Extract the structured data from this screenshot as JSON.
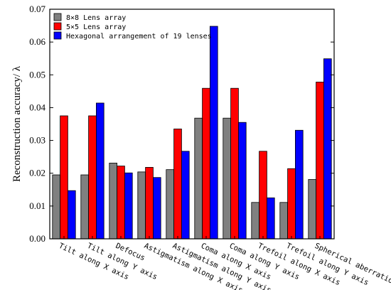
{
  "chart_data": {
    "type": "bar",
    "title": "",
    "xlabel": "",
    "ylabel": "Reconstruction accuracy/ λ",
    "ylim": [
      0,
      0.07
    ],
    "yticks": [
      "0.00",
      "0.01",
      "0.02",
      "0.03",
      "0.04",
      "0.05",
      "0.06",
      "0.07"
    ],
    "grid": false,
    "legend_position": "top-left",
    "categories": [
      "Tilt along X axis",
      "Tilt along Y axis",
      "Defocus",
      "Astigmatism along X axis",
      "Astigmatism along Y axis",
      "Coma along X axis",
      "Coma along Y axis",
      "Trefoil along X axis",
      "Trefoil along Y axis",
      "Spherical aberration"
    ],
    "series": [
      {
        "name": "8×8 Lens array",
        "color": "#808080",
        "values": [
          0.0195,
          0.0195,
          0.0231,
          0.0204,
          0.0211,
          0.0368,
          0.0368,
          0.0111,
          0.0111,
          0.0181
        ]
      },
      {
        "name": "5×5 Lens array",
        "color": "#ff0000",
        "values": [
          0.0375,
          0.0375,
          0.0222,
          0.0218,
          0.0335,
          0.0459,
          0.0459,
          0.0267,
          0.0214,
          0.0478
        ]
      },
      {
        "name": "Hexagonal arrangement of 19 lenses",
        "color": "#0000ff",
        "values": [
          0.0147,
          0.0414,
          0.0201,
          0.0187,
          0.0267,
          0.0648,
          0.0355,
          0.0125,
          0.0331,
          0.0549
        ]
      }
    ]
  }
}
